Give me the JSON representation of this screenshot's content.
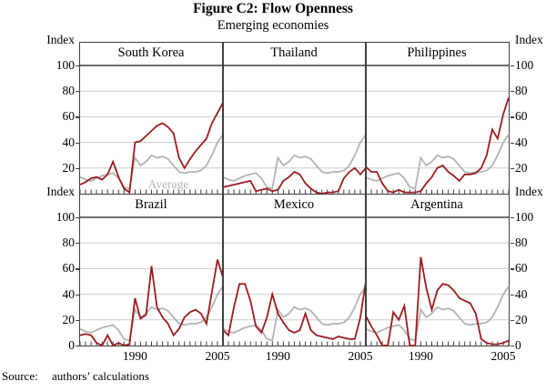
{
  "figure": {
    "title": "Figure C2: Flow Openness",
    "subtitle": "Emerging economies",
    "source_label": "Source:",
    "source_text": "authors’ calculations"
  },
  "chart_data": {
    "type": "line",
    "title": "Figure C2: Flow Openness",
    "subtitle": "Emerging economies",
    "layout": "2x3 small-multiple panels, shared y-axis, gridlines on, no legend box (inline gray label)",
    "unit_label": "Index",
    "ylim": [
      0,
      100
    ],
    "yticks": [
      0,
      20,
      40,
      60,
      80,
      100
    ],
    "years": [
      1980,
      1981,
      1982,
      1983,
      1984,
      1985,
      1986,
      1987,
      1988,
      1989,
      1990,
      1991,
      1992,
      1993,
      1994,
      1995,
      1996,
      1997,
      1998,
      1999,
      2000,
      2001,
      2002,
      2003,
      2004,
      2005,
      2006
    ],
    "xtick_years": [
      1990,
      2005
    ],
    "xtick_labels": [
      "1990",
      "2005"
    ],
    "colors": {
      "country_line": "#9b1c21",
      "average_line": "#b3b3b3",
      "gridline": "#cccccc",
      "frame": "#3f3f3f"
    },
    "average": {
      "name": "Average",
      "values": [
        13,
        11,
        10,
        12,
        14,
        15,
        16,
        12,
        5,
        4,
        28,
        22,
        25,
        30,
        28,
        29,
        27,
        22,
        17,
        16,
        17,
        17,
        18,
        22,
        30,
        40,
        46
      ]
    },
    "panels": [
      {
        "name": "South Korea",
        "values": [
          7,
          9,
          12,
          13,
          11,
          15,
          25,
          13,
          4,
          1,
          40,
          41,
          45,
          49,
          53,
          55,
          52,
          47,
          28,
          20,
          27,
          33,
          38,
          43,
          55,
          63,
          71
        ]
      },
      {
        "name": "Thailand",
        "values": [
          5,
          6,
          7,
          8,
          9,
          10,
          2,
          3,
          4,
          2,
          3,
          10,
          13,
          17,
          15,
          8,
          4,
          1,
          0,
          1,
          1,
          2,
          12,
          17,
          20,
          15,
          20
        ]
      },
      {
        "name": "Philippines",
        "values": [
          21,
          17,
          17,
          8,
          2,
          1,
          3,
          1,
          1,
          1,
          2,
          8,
          13,
          20,
          22,
          17,
          14,
          10,
          15,
          15,
          16,
          20,
          30,
          50,
          43,
          62,
          75
        ]
      },
      {
        "name": "Brazil",
        "values": [
          8,
          9,
          8,
          2,
          0,
          8,
          0,
          2,
          0,
          1,
          37,
          21,
          24,
          62,
          30,
          22,
          17,
          8,
          13,
          22,
          26,
          28,
          25,
          17,
          42,
          67,
          53
        ]
      },
      {
        "name": "Mexico",
        "values": [
          12,
          8,
          30,
          48,
          48,
          35,
          15,
          10,
          22,
          40,
          25,
          18,
          12,
          10,
          12,
          25,
          12,
          8,
          7,
          6,
          5,
          7,
          6,
          5,
          5,
          22,
          50
        ]
      },
      {
        "name": "Argentina",
        "values": [
          23,
          15,
          8,
          0,
          0,
          26,
          20,
          31,
          0,
          0,
          69,
          45,
          28,
          43,
          48,
          47,
          43,
          37,
          35,
          33,
          25,
          5,
          2,
          1,
          1,
          2,
          4
        ]
      }
    ]
  }
}
